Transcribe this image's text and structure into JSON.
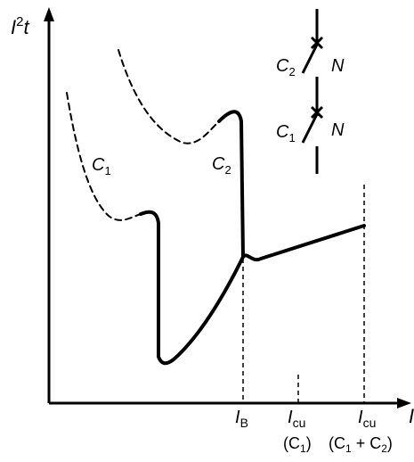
{
  "axes": {
    "y_label": "I",
    "y_label_sup": "2",
    "y_label_suffix": "t",
    "x_label": "I"
  },
  "curves": {
    "c1_label": "C",
    "c1_sub": "1",
    "c2_label": "C",
    "c2_sub": "2"
  },
  "ticks": {
    "ib_main": "I",
    "ib_sub": "B",
    "icu1_main": "I",
    "icu1_sub": "cu",
    "icu1_paren_open": "(C",
    "icu1_paren_sub": "1",
    "icu1_paren_close": ")",
    "icu2_main": "I",
    "icu2_sub": "cu",
    "icu2_part1": "(C",
    "icu2_part1_sub": "1",
    "icu2_plus": " + C",
    "icu2_part2_sub": "2",
    "icu2_close": ")"
  },
  "breakers": {
    "top_label": "C",
    "top_sub": "2",
    "top_n": "N",
    "bottom_label": "C",
    "bottom_sub": "1",
    "bottom_n": "N"
  }
}
